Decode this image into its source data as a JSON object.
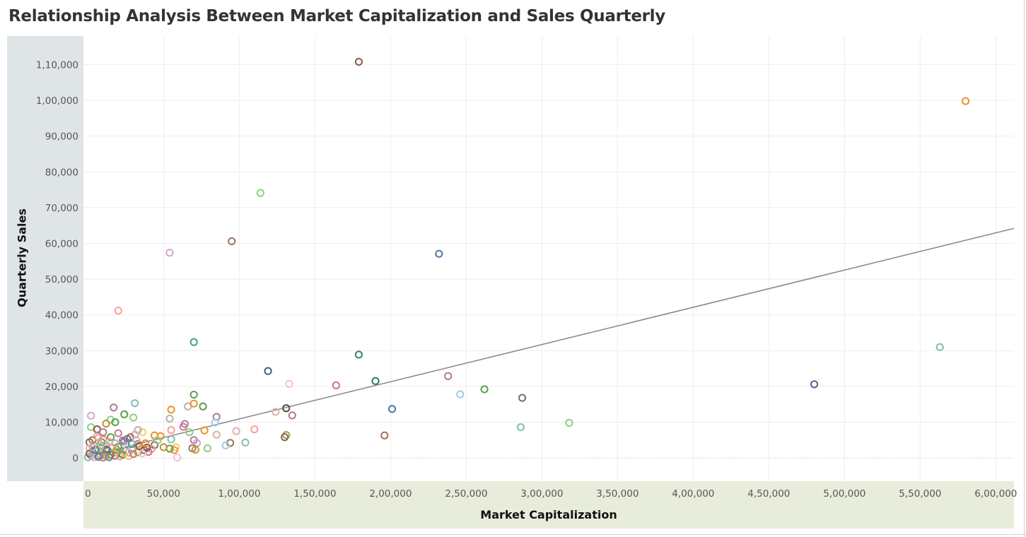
{
  "chart_data": {
    "type": "scatter",
    "title": "Relationship Analysis Between Market Capitalization and Sales Quarterly",
    "xlabel": "Market Capitalization",
    "ylabel": "Quarterly Sales",
    "xlim": [
      -3000,
      612000
    ],
    "ylim": [
      -6500,
      118000
    ],
    "xticks": [
      0,
      50000,
      100000,
      150000,
      200000,
      250000,
      300000,
      350000,
      400000,
      450000,
      500000,
      550000,
      600000
    ],
    "xtick_labels": [
      "0",
      "50,000",
      "1,00,000",
      "1,50,000",
      "2,00,000",
      "2,50,000",
      "3,00,000",
      "3,50,000",
      "4,00,000",
      "4,50,000",
      "5,00,000",
      "5,50,000",
      "6,00,000"
    ],
    "yticks": [
      0,
      10000,
      20000,
      30000,
      40000,
      50000,
      60000,
      70000,
      80000,
      90000,
      100000,
      110000
    ],
    "ytick_labels": [
      "0",
      "10,000",
      "20,000",
      "30,000",
      "40,000",
      "50,000",
      "60,000",
      "70,000",
      "80,000",
      "90,000",
      "1,00,000",
      "1,10,000"
    ],
    "grid": true,
    "trend_line": {
      "x": [
        0,
        612000
      ],
      "y": [
        500,
        64200
      ],
      "color": "#8c8c8c"
    },
    "points": [
      {
        "x": 179000,
        "y": 110800,
        "color": "#8b5a3c"
      },
      {
        "x": 580000,
        "y": 99800,
        "color": "#f28e2b"
      },
      {
        "x": 114000,
        "y": 74100,
        "color": "#8cd17d"
      },
      {
        "x": 95000,
        "y": 60600,
        "color": "#9c755f"
      },
      {
        "x": 54000,
        "y": 57400,
        "color": "#d4a6c8"
      },
      {
        "x": 232000,
        "y": 57100,
        "color": "#4e79a7"
      },
      {
        "x": 20000,
        "y": 41200,
        "color": "#ff9d9a"
      },
      {
        "x": 70000,
        "y": 32400,
        "color": "#499894"
      },
      {
        "x": 179000,
        "y": 28900,
        "color": "#3b7f7a"
      },
      {
        "x": 563000,
        "y": 31000,
        "color": "#86bcb6"
      },
      {
        "x": 119000,
        "y": 24300,
        "color": "#3e5f8a"
      },
      {
        "x": 238000,
        "y": 22900,
        "color": "#b07aa1"
      },
      {
        "x": 190000,
        "y": 21500,
        "color": "#2f7a72"
      },
      {
        "x": 133000,
        "y": 20700,
        "color": "#fabfd2"
      },
      {
        "x": 164000,
        "y": 20300,
        "color": "#d37295"
      },
      {
        "x": 480000,
        "y": 20600,
        "color": "#4e6a8f"
      },
      {
        "x": 262000,
        "y": 19200,
        "color": "#59a14f"
      },
      {
        "x": 246000,
        "y": 17800,
        "color": "#a0cbe8"
      },
      {
        "x": 287000,
        "y": 16800,
        "color": "#79706e"
      },
      {
        "x": 70000,
        "y": 17700,
        "color": "#59a14f"
      },
      {
        "x": 201000,
        "y": 13700,
        "color": "#4e79a7"
      },
      {
        "x": 131000,
        "y": 13900,
        "color": "#5a4a42"
      },
      {
        "x": 135000,
        "y": 11900,
        "color": "#b07aa1"
      },
      {
        "x": 124000,
        "y": 12900,
        "color": "#d7b5a6"
      },
      {
        "x": 31000,
        "y": 15300,
        "color": "#86bcb6"
      },
      {
        "x": 17000,
        "y": 14100,
        "color": "#b07aa1"
      },
      {
        "x": 2000,
        "y": 11800,
        "color": "#d4a6c8"
      },
      {
        "x": 24000,
        "y": 12200,
        "color": "#59a14f"
      },
      {
        "x": 30000,
        "y": 11300,
        "color": "#8cd17d"
      },
      {
        "x": 15000,
        "y": 10700,
        "color": "#8cd17d"
      },
      {
        "x": 18000,
        "y": 10000,
        "color": "#59a14f"
      },
      {
        "x": 12000,
        "y": 9600,
        "color": "#b6992d"
      },
      {
        "x": 2000,
        "y": 8600,
        "color": "#8cd17d"
      },
      {
        "x": 6000,
        "y": 8000,
        "color": "#8b5a3c"
      },
      {
        "x": 55000,
        "y": 13500,
        "color": "#f28e2b"
      },
      {
        "x": 66000,
        "y": 14400,
        "color": "#bab0ac"
      },
      {
        "x": 70000,
        "y": 15200,
        "color": "#f28e2b"
      },
      {
        "x": 76000,
        "y": 14400,
        "color": "#59a14f"
      },
      {
        "x": 85000,
        "y": 11500,
        "color": "#b07aa1"
      },
      {
        "x": 64000,
        "y": 9500,
        "color": "#b07aa1"
      },
      {
        "x": 63000,
        "y": 8700,
        "color": "#d37295"
      },
      {
        "x": 54000,
        "y": 11000,
        "color": "#bab0ac"
      },
      {
        "x": 77000,
        "y": 7700,
        "color": "#f28e2b"
      },
      {
        "x": 84000,
        "y": 9900,
        "color": "#a0cbe8"
      },
      {
        "x": 67000,
        "y": 7200,
        "color": "#8cd17d"
      },
      {
        "x": 85000,
        "y": 6500,
        "color": "#d7b5a6"
      },
      {
        "x": 98000,
        "y": 7500,
        "color": "#d7b5a6"
      },
      {
        "x": 110000,
        "y": 8000,
        "color": "#ff9d9a"
      },
      {
        "x": 131000,
        "y": 6400,
        "color": "#b6992d"
      },
      {
        "x": 130000,
        "y": 5800,
        "color": "#79706e"
      },
      {
        "x": 196000,
        "y": 6300,
        "color": "#9c755f"
      },
      {
        "x": 286000,
        "y": 8600,
        "color": "#86bcb6"
      },
      {
        "x": 318000,
        "y": 9800,
        "color": "#8cd17d"
      },
      {
        "x": 104000,
        "y": 4300,
        "color": "#86bcb6"
      },
      {
        "x": 94000,
        "y": 4200,
        "color": "#9c755f"
      },
      {
        "x": 91000,
        "y": 3500,
        "color": "#a0cbe8"
      },
      {
        "x": 79000,
        "y": 2700,
        "color": "#8cd17d"
      },
      {
        "x": 70000,
        "y": 5000,
        "color": "#b07aa1"
      },
      {
        "x": 72000,
        "y": 4200,
        "color": "#d4a6c8"
      },
      {
        "x": 69000,
        "y": 2700,
        "color": "#9c755f"
      },
      {
        "x": 71000,
        "y": 2300,
        "color": "#b6992d"
      },
      {
        "x": 55000,
        "y": 7800,
        "color": "#ff9d9a"
      },
      {
        "x": 55000,
        "y": 5200,
        "color": "#86bcb6"
      },
      {
        "x": 58000,
        "y": 3000,
        "color": "#f1ce63"
      },
      {
        "x": 57000,
        "y": 2200,
        "color": "#f28e2b"
      },
      {
        "x": 54000,
        "y": 2600,
        "color": "#59a14f"
      },
      {
        "x": 59000,
        "y": 100,
        "color": "#fabfd2"
      },
      {
        "x": 48000,
        "y": 6100,
        "color": "#f28e2b"
      },
      {
        "x": 44000,
        "y": 6300,
        "color": "#f28e2b"
      },
      {
        "x": 50000,
        "y": 3000,
        "color": "#b6992d"
      },
      {
        "x": 44000,
        "y": 3600,
        "color": "#79706e"
      },
      {
        "x": 42000,
        "y": 2500,
        "color": "#ff9d9a"
      },
      {
        "x": 40000,
        "y": 1700,
        "color": "#d37295"
      },
      {
        "x": 36000,
        "y": 7200,
        "color": "#f1ce63"
      },
      {
        "x": 33000,
        "y": 7800,
        "color": "#bab0ac"
      },
      {
        "x": 31000,
        "y": 6500,
        "color": "#d4a6c8"
      },
      {
        "x": 28000,
        "y": 5800,
        "color": "#9c755f"
      },
      {
        "x": 26000,
        "y": 5300,
        "color": "#79706e"
      },
      {
        "x": 24000,
        "y": 4600,
        "color": "#4e79a7"
      },
      {
        "x": 22000,
        "y": 3500,
        "color": "#86bcb6"
      },
      {
        "x": 20000,
        "y": 6900,
        "color": "#d37295"
      },
      {
        "x": 15000,
        "y": 5800,
        "color": "#59a14f"
      },
      {
        "x": 10000,
        "y": 5200,
        "color": "#f28e2b"
      },
      {
        "x": 9000,
        "y": 4400,
        "color": "#499894"
      },
      {
        "x": 6000,
        "y": 6000,
        "color": "#d7b5a6"
      },
      {
        "x": 3000,
        "y": 5000,
        "color": "#9c755f"
      },
      {
        "x": 1000,
        "y": 4400,
        "color": "#79706e"
      },
      {
        "x": 4000,
        "y": 3500,
        "color": "#b6992d"
      },
      {
        "x": 12000,
        "y": 3600,
        "color": "#86bcb6"
      },
      {
        "x": 33000,
        "y": 3900,
        "color": "#b07aa1"
      },
      {
        "x": 35000,
        "y": 2800,
        "color": "#f1ce63"
      },
      {
        "x": 37000,
        "y": 2200,
        "color": "#4e79a7"
      },
      {
        "x": 29000,
        "y": 2500,
        "color": "#8cd17d"
      },
      {
        "x": 27000,
        "y": 1500,
        "color": "#d4a6c8"
      },
      {
        "x": 25000,
        "y": 2000,
        "color": "#499894"
      },
      {
        "x": 22000,
        "y": 1200,
        "color": "#f28e2b"
      },
      {
        "x": 19000,
        "y": 2300,
        "color": "#b6992d"
      },
      {
        "x": 17000,
        "y": 1500,
        "color": "#8cd17d"
      },
      {
        "x": 15000,
        "y": 900,
        "color": "#79706e"
      },
      {
        "x": 13000,
        "y": 2100,
        "color": "#4e79a7"
      },
      {
        "x": 11000,
        "y": 1200,
        "color": "#86bcb6"
      },
      {
        "x": 9000,
        "y": 1800,
        "color": "#d37295"
      },
      {
        "x": 8000,
        "y": 700,
        "color": "#59a14f"
      },
      {
        "x": 6000,
        "y": 2500,
        "color": "#ff9d9a"
      },
      {
        "x": 5000,
        "y": 1000,
        "color": "#f1ce63"
      },
      {
        "x": 3000,
        "y": 1800,
        "color": "#499894"
      },
      {
        "x": 2000,
        "y": 600,
        "color": "#bab0ac"
      },
      {
        "x": 1000,
        "y": 2700,
        "color": "#d7b5a6"
      },
      {
        "x": 0,
        "y": 200,
        "color": "#86bcb6"
      },
      {
        "x": 1000,
        "y": 1200,
        "color": "#8b5a3c"
      },
      {
        "x": 4000,
        "y": 200,
        "color": "#d4a6c8"
      },
      {
        "x": 7000,
        "y": 300,
        "color": "#4e79a7"
      },
      {
        "x": 10000,
        "y": 100,
        "color": "#b07aa1"
      },
      {
        "x": 12000,
        "y": 500,
        "color": "#f28e2b"
      },
      {
        "x": 14000,
        "y": 200,
        "color": "#499894"
      },
      {
        "x": 18000,
        "y": 600,
        "color": "#9c755f"
      },
      {
        "x": 21000,
        "y": 400,
        "color": "#ff9d9a"
      },
      {
        "x": 23000,
        "y": 900,
        "color": "#59a14f"
      },
      {
        "x": 27000,
        "y": 500,
        "color": "#f1ce63"
      },
      {
        "x": 30000,
        "y": 1100,
        "color": "#d37295"
      },
      {
        "x": 33000,
        "y": 1600,
        "color": "#b6992d"
      },
      {
        "x": 36000,
        "y": 1300,
        "color": "#fabfd2"
      },
      {
        "x": 39000,
        "y": 2900,
        "color": "#8b5a3c"
      },
      {
        "x": 26000,
        "y": 3300,
        "color": "#fabfd2"
      },
      {
        "x": 20000,
        "y": 3100,
        "color": "#59a14f"
      },
      {
        "x": 16000,
        "y": 2900,
        "color": "#f28e2b"
      },
      {
        "x": 12000,
        "y": 2400,
        "color": "#79706e"
      },
      {
        "x": 8000,
        "y": 3100,
        "color": "#8cd17d"
      },
      {
        "x": 5000,
        "y": 2300,
        "color": "#4e79a7"
      },
      {
        "x": 3000,
        "y": 3000,
        "color": "#d4a6c8"
      },
      {
        "x": 14000,
        "y": 4500,
        "color": "#ff9d9a"
      },
      {
        "x": 18000,
        "y": 4100,
        "color": "#bab0ac"
      },
      {
        "x": 23000,
        "y": 4900,
        "color": "#b07aa1"
      },
      {
        "x": 29000,
        "y": 3900,
        "color": "#499894"
      },
      {
        "x": 32000,
        "y": 5000,
        "color": "#d7b5a6"
      },
      {
        "x": 34000,
        "y": 3300,
        "color": "#8b5a3c"
      },
      {
        "x": 38000,
        "y": 4100,
        "color": "#f28e2b"
      },
      {
        "x": 46000,
        "y": 4900,
        "color": "#8cd17d"
      },
      {
        "x": 7000,
        "y": 5600,
        "color": "#ff9d9a"
      },
      {
        "x": 10000,
        "y": 7200,
        "color": "#b07aa1"
      }
    ]
  }
}
